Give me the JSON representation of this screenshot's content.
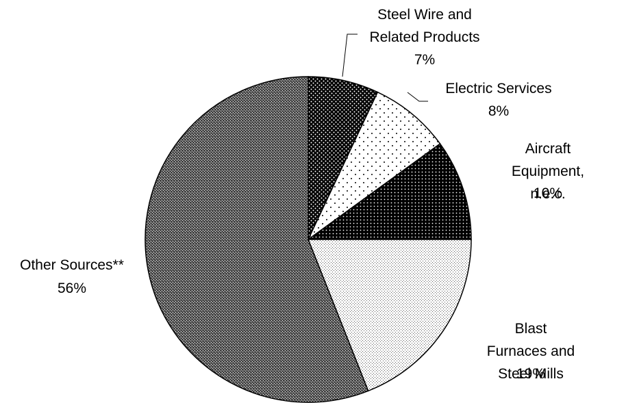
{
  "chart_data": {
    "type": "pie",
    "categories": [
      "Steel Wire and\nRelated Products",
      "Electric Services",
      "Aircraft Equipment,\nn.e.c.",
      "Blast Furnaces and\nSteel Mills",
      "Other Sources**"
    ],
    "values": [
      7,
      8,
      10,
      19,
      56
    ],
    "value_labels": [
      "7%",
      "8%",
      "10%",
      "19%",
      "56%"
    ]
  }
}
